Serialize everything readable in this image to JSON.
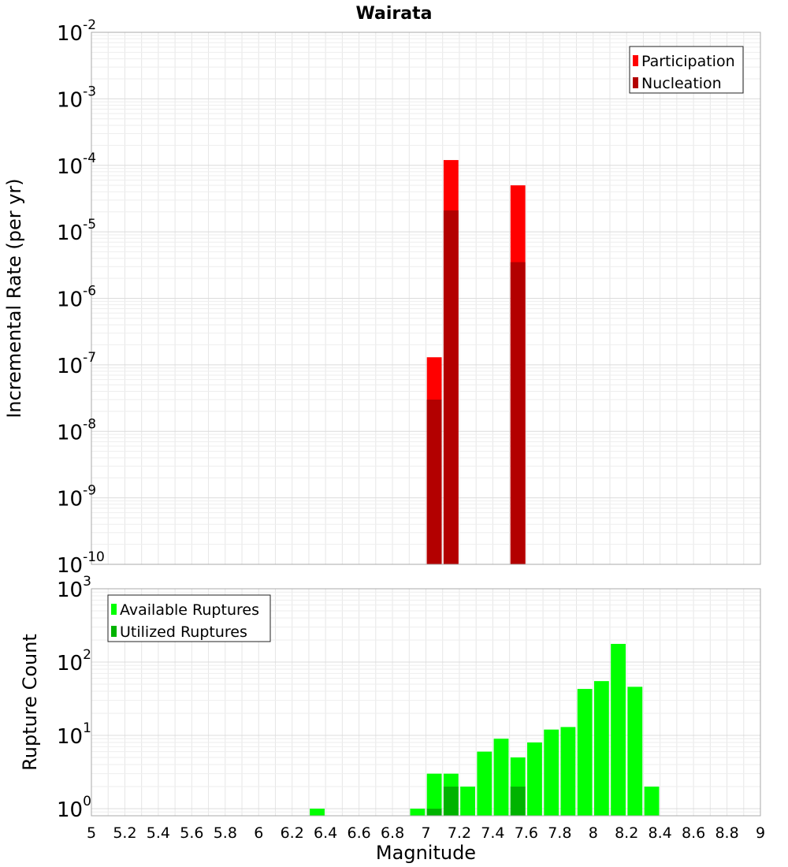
{
  "chart_data": [
    {
      "type": "bar",
      "title": "Wairata",
      "ylabel": "Incremental Rate (per yr)",
      "xlabel": "",
      "xlim": [
        5,
        9
      ],
      "ylim": [
        1e-10,
        0.01
      ],
      "yscale": "log",
      "grid": true,
      "legend_position": "top-right",
      "bin_width": 0.1,
      "y_tick_labels": [
        {
          "base": "10",
          "exp": "-2"
        },
        {
          "base": "10",
          "exp": "-3"
        },
        {
          "base": "10",
          "exp": "-4"
        },
        {
          "base": "10",
          "exp": "-5"
        },
        {
          "base": "10",
          "exp": "-6"
        },
        {
          "base": "10",
          "exp": "-7"
        },
        {
          "base": "10",
          "exp": "-8"
        },
        {
          "base": "10",
          "exp": "-9"
        },
        {
          "base": "10",
          "exp": "-10"
        }
      ],
      "series": [
        {
          "name": "Participation",
          "color": "#ff0000",
          "points": [
            {
              "x": 7.05,
              "y": 1.3e-07
            },
            {
              "x": 7.15,
              "y": 0.00012
            },
            {
              "x": 7.55,
              "y": 5e-05
            }
          ]
        },
        {
          "name": "Nucleation",
          "color": "#b30000",
          "points": [
            {
              "x": 7.05,
              "y": 3e-08
            },
            {
              "x": 7.15,
              "y": 2.1e-05
            },
            {
              "x": 7.55,
              "y": 3.5e-06
            }
          ]
        }
      ]
    },
    {
      "type": "bar",
      "ylabel": "Rupture Count",
      "xlabel": "Magnitude",
      "xlim": [
        5,
        9
      ],
      "ylim": [
        0.8,
        1000
      ],
      "yscale": "log",
      "grid": true,
      "legend_position": "top-left",
      "bin_width": 0.1,
      "x_tick_labels": [
        "5",
        "5.2",
        "5.4",
        "5.6",
        "5.8",
        "6",
        "6.2",
        "6.4",
        "6.6",
        "6.8",
        "7",
        "7.2",
        "7.4",
        "7.6",
        "7.8",
        "8",
        "8.2",
        "8.4",
        "8.6",
        "8.8",
        "9"
      ],
      "y_tick_labels": [
        {
          "base": "10",
          "exp": "3"
        },
        {
          "base": "10",
          "exp": "2"
        },
        {
          "base": "10",
          "exp": "1"
        },
        {
          "base": "10",
          "exp": "0"
        }
      ],
      "series": [
        {
          "name": "Available Ruptures",
          "color": "#00ff00",
          "points": [
            {
              "x": 6.35,
              "y": 1
            },
            {
              "x": 6.95,
              "y": 1
            },
            {
              "x": 7.05,
              "y": 3
            },
            {
              "x": 7.15,
              "y": 3
            },
            {
              "x": 7.25,
              "y": 2
            },
            {
              "x": 7.35,
              "y": 6
            },
            {
              "x": 7.45,
              "y": 9
            },
            {
              "x": 7.55,
              "y": 5
            },
            {
              "x": 7.65,
              "y": 8
            },
            {
              "x": 7.75,
              "y": 12
            },
            {
              "x": 7.85,
              "y": 13
            },
            {
              "x": 7.95,
              "y": 43
            },
            {
              "x": 8.05,
              "y": 55
            },
            {
              "x": 8.15,
              "y": 177
            },
            {
              "x": 8.25,
              "y": 46
            },
            {
              "x": 8.35,
              "y": 2
            }
          ]
        },
        {
          "name": "Utilized Ruptures",
          "color": "#00b300",
          "points": [
            {
              "x": 7.05,
              "y": 1
            },
            {
              "x": 7.15,
              "y": 2
            },
            {
              "x": 7.55,
              "y": 2
            }
          ]
        }
      ]
    }
  ]
}
